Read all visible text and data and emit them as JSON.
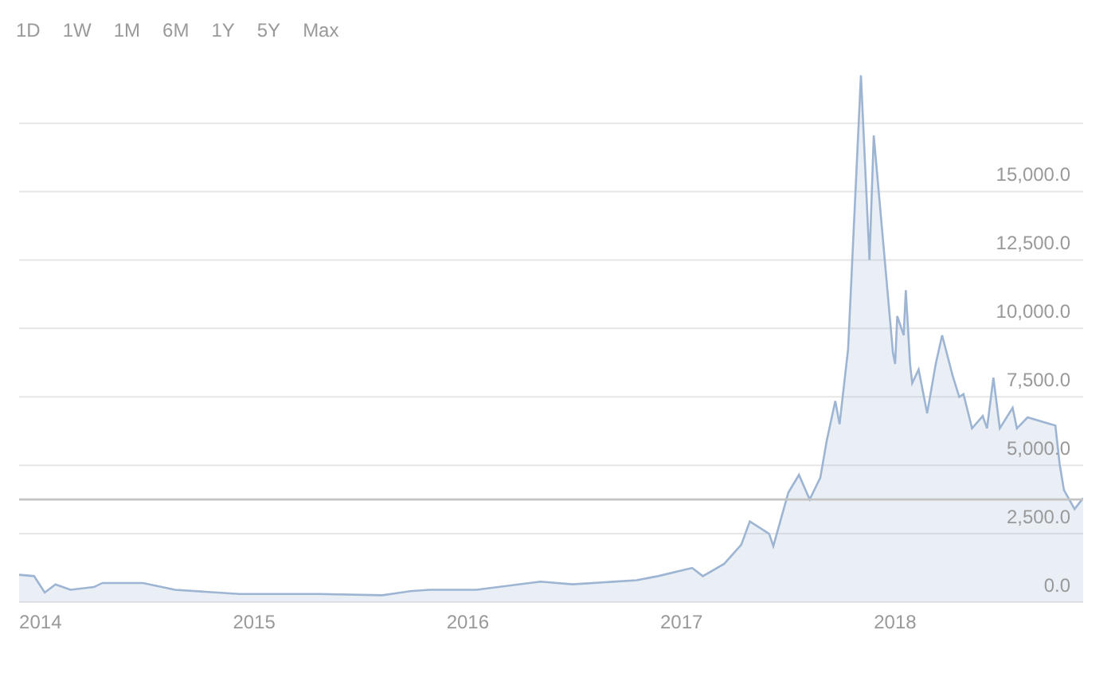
{
  "chart_data": {
    "type": "area",
    "annotations": [
      "1D",
      "1W",
      "1M",
      "6M",
      "1Y",
      "5Y",
      "Max"
    ],
    "x": [
      2013.9,
      2013.97,
      2014.02,
      2014.07,
      2014.14,
      2014.25,
      2014.29,
      2014.48,
      2014.63,
      2014.93,
      2015.3,
      2015.6,
      2015.73,
      2015.82,
      2016.04,
      2016.34,
      2016.49,
      2016.79,
      2016.89,
      2017.05,
      2017.1,
      2017.2,
      2017.28,
      2017.32,
      2017.41,
      2017.43,
      2017.5,
      2017.55,
      2017.6,
      2017.65,
      2017.68,
      2017.72,
      2017.74,
      2017.78,
      2017.84,
      2017.88,
      2017.9,
      2017.99,
      2018.0,
      2018.01,
      2018.04,
      2018.05,
      2018.07,
      2018.08,
      2018.11,
      2018.15,
      2018.19,
      2018.22,
      2018.27,
      2018.3,
      2018.32,
      2018.36,
      2018.41,
      2018.43,
      2018.46,
      2018.49,
      2018.55,
      2018.57,
      2018.62,
      2018.73,
      2018.75,
      2018.77,
      2018.79,
      2018.84,
      2018.88
    ],
    "series": [
      {
        "color": "#9db5d3",
        "values": [
          1000,
          950,
          350,
          650,
          450,
          550,
          700,
          700,
          450,
          300,
          300,
          250,
          400,
          450,
          450,
          750,
          650,
          800,
          950,
          1250,
          950,
          1400,
          2100,
          2950,
          2500,
          2050,
          4000,
          4650,
          3750,
          4550,
          5900,
          7350,
          6500,
          9250,
          19250,
          12500,
          17050,
          9100,
          8700,
          10450,
          9750,
          11400,
          8700,
          8000,
          8500,
          6900,
          8700,
          9750,
          8250,
          7500,
          7600,
          6350,
          6800,
          6350,
          8200,
          6350,
          7100,
          6350,
          6750,
          6500,
          6450,
          5050,
          4100,
          3400,
          3800
        ]
      }
    ],
    "xlim": [
      2013.9,
      2018.88
    ],
    "xticks": [
      2014,
      2015,
      2016,
      2017,
      2018
    ],
    "ylim": [
      0,
      22000
    ],
    "yticks": [
      {
        "value": 0,
        "label": "0.0"
      },
      {
        "value": 2500,
        "label": "2,500.0"
      },
      {
        "value": 5000,
        "label": "5,000.0"
      },
      {
        "value": 7500,
        "label": "7,500.0"
      },
      {
        "value": 10000,
        "label": "10,000.0"
      },
      {
        "value": 12500,
        "label": "12,500.0"
      },
      {
        "value": 15000,
        "label": "15,000.0"
      },
      {
        "value": 17500,
        "label": null
      }
    ],
    "grid": "y",
    "ref_lines": [
      {
        "axis": "y",
        "value": 3750,
        "color": "#c4c4c4"
      }
    ]
  }
}
